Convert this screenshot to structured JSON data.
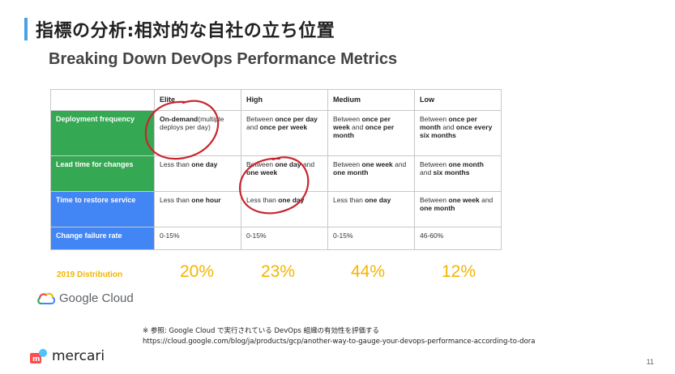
{
  "slide": {
    "title": "指標の分析:相対的な自社の立ち位置",
    "page_number": "11"
  },
  "panel": {
    "title": "Breaking Down DevOps Performance Metrics"
  },
  "table": {
    "headers": [
      "",
      "Elite",
      "High",
      "Medium",
      "Low"
    ],
    "rows": [
      {
        "label": "Deployment frequency",
        "cells": [
          [
            {
              "b": "On-demand"
            },
            {
              "t": "(multiple deploys per day)"
            }
          ],
          [
            {
              "t": "Between "
            },
            {
              "b": "once per day"
            },
            {
              "t": " and "
            },
            {
              "b": "once per week"
            }
          ],
          [
            {
              "t": "Between "
            },
            {
              "b": "once per week"
            },
            {
              "t": " and "
            },
            {
              "b": "once per month"
            }
          ],
          [
            {
              "t": "Between "
            },
            {
              "b": "once per month"
            },
            {
              "t": " and "
            },
            {
              "b": "once every six months"
            }
          ]
        ]
      },
      {
        "label": "Lead time for changes",
        "cells": [
          [
            {
              "t": "Less than "
            },
            {
              "b": "one day"
            }
          ],
          [
            {
              "t": "Between "
            },
            {
              "b": "one day"
            },
            {
              "t": " and "
            },
            {
              "b": "one week"
            }
          ],
          [
            {
              "t": "Between "
            },
            {
              "b": "one week"
            },
            {
              "t": " and "
            },
            {
              "b": "one month"
            }
          ],
          [
            {
              "t": "Between "
            },
            {
              "b": "one month"
            },
            {
              "t": " and "
            },
            {
              "b": "six months"
            }
          ]
        ]
      },
      {
        "label": "Time to restore service",
        "cells": [
          [
            {
              "t": "Less than "
            },
            {
              "b": "one hour"
            }
          ],
          [
            {
              "t": "Less than "
            },
            {
              "b": "one day"
            }
          ],
          [
            {
              "t": "Less than "
            },
            {
              "b": "one day"
            }
          ],
          [
            {
              "t": "Between "
            },
            {
              "b": "one week"
            },
            {
              "t": " and "
            },
            {
              "b": "one month"
            }
          ]
        ]
      },
      {
        "label": "Change failure rate",
        "cells": [
          [
            {
              "t": "0-15%"
            }
          ],
          [
            {
              "t": "0-15%"
            }
          ],
          [
            {
              "t": "0-15%"
            }
          ],
          [
            {
              "t": "46-60%"
            }
          ]
        ]
      }
    ]
  },
  "distribution": {
    "label": "2019 Distribution",
    "values": [
      "20%",
      "23%",
      "44%",
      "12%"
    ]
  },
  "colors": {
    "green": "#34a853",
    "blue": "#4285f4",
    "yellow": "#f4b400",
    "annotation_red": "#c8262e",
    "title_accent": "#4aa3e0"
  },
  "logos": {
    "google_cloud": "Google Cloud",
    "mercari": "mercari"
  },
  "footnote": {
    "line1": "※ 参照: Google Cloud で実行されている DevOps 組織の有効性を評価する",
    "line2": "https://cloud.google.com/blog/ja/products/gcp/another-way-to-gauge-your-devops-performance-according-to-dora"
  }
}
